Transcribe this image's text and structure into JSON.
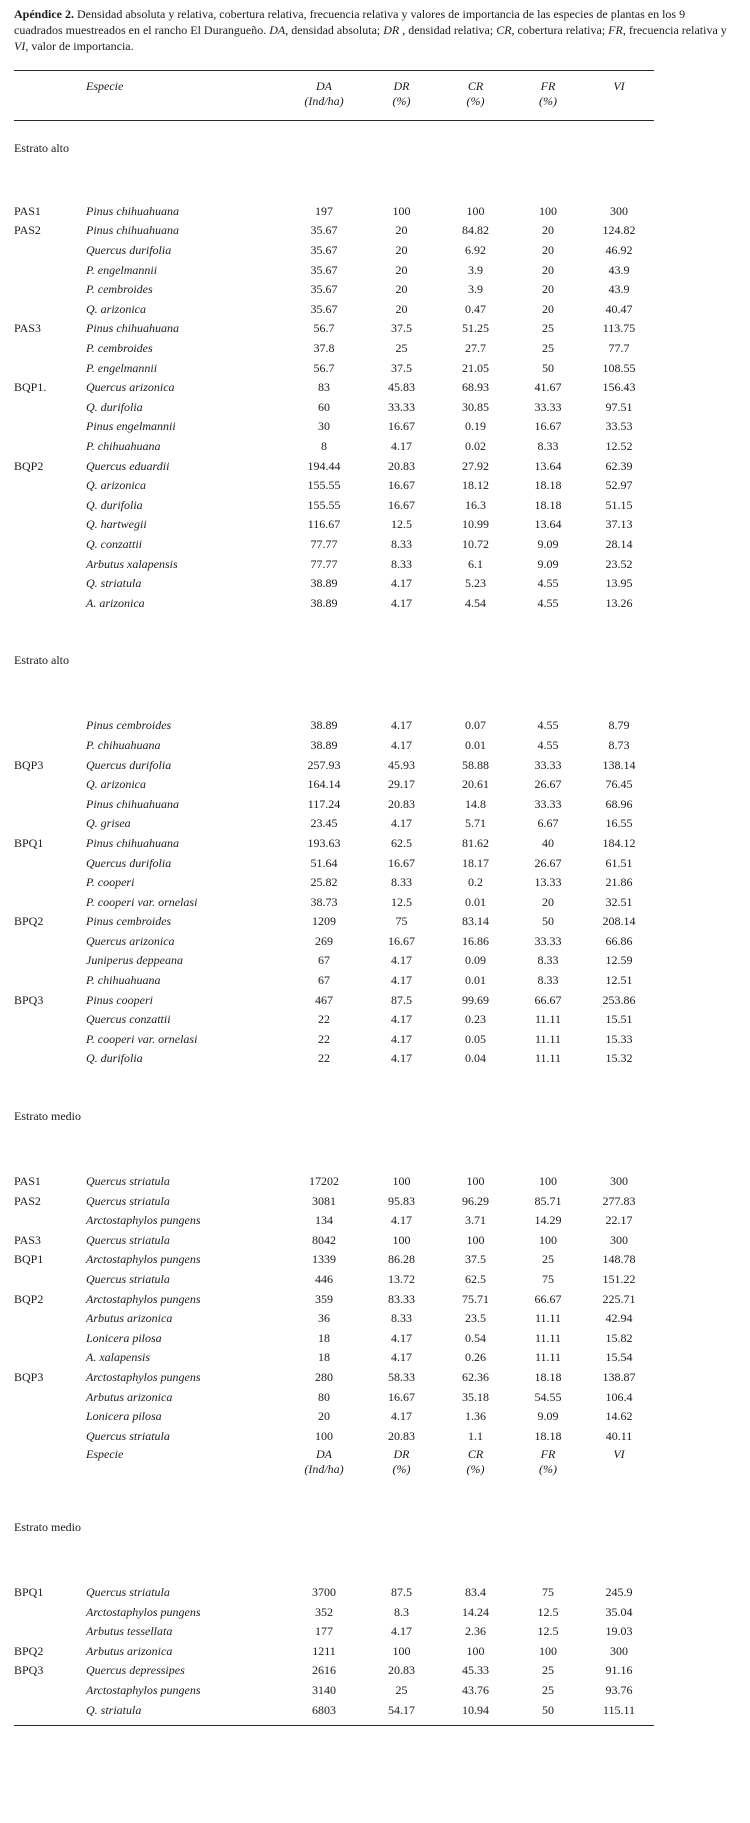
{
  "caption": {
    "parts": [
      {
        "style": "bold",
        "text": "Apéndice 2."
      },
      {
        "style": "normal",
        "text": " Densidad absoluta y relativa, cobertura relativa, frecuencia relativa y valores de importancia de las especies de plantas en los 9 cuadrados muestreados en el rancho El Durangueño. "
      },
      {
        "style": "italic",
        "text": "DA"
      },
      {
        "style": "normal",
        "text": ", densidad absoluta; "
      },
      {
        "style": "italic",
        "text": "DR"
      },
      {
        "style": "normal",
        "text": " , densidad relativa; "
      },
      {
        "style": "italic",
        "text": "CR"
      },
      {
        "style": "normal",
        "text": ", cobertura relativa; "
      },
      {
        "style": "italic",
        "text": "FR"
      },
      {
        "style": "normal",
        "text": ", frecuencia relativa y "
      },
      {
        "style": "italic",
        "text": "VI"
      },
      {
        "style": "normal",
        "text": ", valor de importancia."
      }
    ]
  },
  "table": {
    "header": {
      "especie": "Especie",
      "cols": [
        {
          "line1": "DA",
          "line2": "(Ind/ha)"
        },
        {
          "line1": "DR",
          "line2": "(%)"
        },
        {
          "line1": "CR",
          "line2": "(%)"
        },
        {
          "line1": "FR",
          "line2": "(%)"
        },
        {
          "line1": "VI",
          "line2": ""
        }
      ]
    },
    "rows": [
      {
        "section": "Estrato alto"
      },
      [
        "PAS1",
        "Pinus chihuahuana",
        "197",
        "100",
        "100",
        "100",
        "300"
      ],
      [
        "PAS2",
        "Pinus chihuahuana",
        "35.67",
        "20",
        "84.82",
        "20",
        "124.82"
      ],
      [
        "",
        "Quercus durifolia",
        "35.67",
        "20",
        "6.92",
        "20",
        "46.92"
      ],
      [
        "",
        "P. engelmannii",
        "35.67",
        "20",
        "3.9",
        "20",
        "43.9"
      ],
      [
        "",
        "P. cembroides",
        "35.67",
        "20",
        "3.9",
        "20",
        "43.9"
      ],
      [
        "",
        "Q. arizonica",
        "35.67",
        "20",
        "0.47",
        "20",
        "40.47"
      ],
      [
        "PAS3",
        "Pinus chihuahuana",
        "56.7",
        "37.5",
        "51.25",
        "25",
        "113.75"
      ],
      [
        "",
        "P. cembroides",
        "37.8",
        "25",
        "27.7",
        "25",
        "77.7"
      ],
      [
        "",
        "P. engelmannii",
        "56.7",
        "37.5",
        "21.05",
        "50",
        "108.55"
      ],
      [
        "BQP1.",
        "Quercus arizonica",
        "83",
        "45.83",
        "68.93",
        "41.67",
        "156.43"
      ],
      [
        "",
        "Q. durifolia",
        "60",
        "33.33",
        "30.85",
        "33.33",
        "97.51"
      ],
      [
        "",
        "Pinus engelmannii",
        "30",
        "16.67",
        "0.19",
        "16.67",
        "33.53"
      ],
      [
        "",
        "P. chihuahuana",
        "8",
        "4.17",
        "0.02",
        "8.33",
        "12.52"
      ],
      [
        "BQP2",
        "Quercus eduardii",
        "194.44",
        "20.83",
        "27.92",
        "13.64",
        "62.39"
      ],
      [
        "",
        "Q. arizonica",
        "155.55",
        "16.67",
        "18.12",
        "18.18",
        "52.97"
      ],
      [
        "",
        "Q. durifolia",
        "155.55",
        "16.67",
        "16.3",
        "18.18",
        "51.15"
      ],
      [
        "",
        "Q. hartwegii",
        "116.67",
        "12.5",
        "10.99",
        "13.64",
        "37.13"
      ],
      [
        "",
        "Q. conzattii",
        "77.77",
        "8.33",
        "10.72",
        "9.09",
        "28.14"
      ],
      [
        "",
        "Arbutus xalapensis",
        "77.77",
        "8.33",
        "6.1",
        "9.09",
        "23.52"
      ],
      [
        "",
        "Q. striatula",
        "38.89",
        "4.17",
        "5.23",
        "4.55",
        "13.95"
      ],
      [
        "",
        "A. arizonica",
        "38.89",
        "4.17",
        "4.54",
        "4.55",
        "13.26"
      ],
      {
        "section": "Estrato alto"
      },
      [
        "",
        "Pinus cembroides",
        "38.89",
        "4.17",
        "0.07",
        "4.55",
        "8.79"
      ],
      [
        "",
        "P. chihuahuana",
        "38.89",
        "4.17",
        "0.01",
        "4.55",
        "8.73"
      ],
      [
        "BQP3",
        "Quercus durifolia",
        "257.93",
        "45.93",
        "58.88",
        "33.33",
        "138.14"
      ],
      [
        "",
        "Q. arizonica",
        "164.14",
        "29.17",
        "20.61",
        "26.67",
        "76.45"
      ],
      [
        "",
        "Pinus chihuahuana",
        "117.24",
        "20.83",
        "14.8",
        "33.33",
        "68.96"
      ],
      [
        "",
        "Q. grisea",
        "23.45",
        "4.17",
        "5.71",
        "6.67",
        "16.55"
      ],
      [
        "BPQ1",
        "Pinus chihuahuana",
        "193.63",
        "62.5",
        "81.62",
        "40",
        "184.12"
      ],
      [
        "",
        "Quercus durifolia",
        "51.64",
        "16.67",
        "18.17",
        "26.67",
        "61.51"
      ],
      [
        "",
        "P. cooperi",
        "25.82",
        "8.33",
        "0.2",
        "13.33",
        "21.86"
      ],
      [
        "",
        "P. cooperi var. ornelasi",
        "38.73",
        "12.5",
        "0.01",
        "20",
        "32.51"
      ],
      [
        "BPQ2",
        "Pinus cembroides",
        "1209",
        "75",
        "83.14",
        "50",
        "208.14"
      ],
      [
        "",
        "Quercus arizonica",
        "269",
        "16.67",
        "16.86",
        "33.33",
        "66.86"
      ],
      [
        "",
        "Juniperus deppeana",
        "67",
        "4.17",
        "0.09",
        "8.33",
        "12.59"
      ],
      [
        "",
        "P. chihuahuana",
        "67",
        "4.17",
        "0.01",
        "8.33",
        "12.51"
      ],
      [
        "BPQ3",
        "Pinus cooperi",
        "467",
        "87.5",
        "99.69",
        "66.67",
        "253.86"
      ],
      [
        "",
        "Quercus conzattii",
        "22",
        "4.17",
        "0.23",
        "11.11",
        "15.51"
      ],
      [
        "",
        "P. cooperi var. ornelasi",
        "22",
        "4.17",
        "0.05",
        "11.11",
        "15.33"
      ],
      [
        "",
        "Q. durifolia",
        "22",
        "4.17",
        "0.04",
        "11.11",
        "15.32"
      ],
      {
        "section": "Estrato medio"
      },
      [
        "PAS1",
        "Quercus striatula",
        "17202",
        "100",
        "100",
        "100",
        "300"
      ],
      [
        "PAS2",
        "Quercus striatula",
        "3081",
        "95.83",
        "96.29",
        "85.71",
        "277.83"
      ],
      [
        "",
        "Arctostaphylos pungens",
        "134",
        "4.17",
        "3.71",
        "14.29",
        "22.17"
      ],
      [
        "PAS3",
        "Quercus striatula",
        "8042",
        "100",
        "100",
        "100",
        "300"
      ],
      [
        "BQP1",
        "Arctostaphylos pungens",
        "1339",
        "86.28",
        "37.5",
        "25",
        "148.78"
      ],
      [
        "",
        "Quercus striatula",
        "446",
        "13.72",
        "62.5",
        "75",
        "151.22"
      ],
      [
        "BQP2",
        "Arctostaphylos pungens",
        "359",
        "83.33",
        "75.71",
        "66.67",
        "225.71"
      ],
      [
        "",
        "Arbutus arizonica",
        "36",
        "8.33",
        "23.5",
        "11.11",
        "42.94"
      ],
      [
        "",
        "Lonicera pilosa",
        "18",
        "4.17",
        "0.54",
        "11.11",
        "15.82"
      ],
      [
        "",
        "A. xalapensis",
        "18",
        "4.17",
        "0.26",
        "11.11",
        "15.54"
      ],
      [
        "BQP3",
        "Arctostaphylos pungens",
        "280",
        "58.33",
        "62.36",
        "18.18",
        "138.87"
      ],
      [
        "",
        "Arbutus arizonica",
        "80",
        "16.67",
        "35.18",
        "54.55",
        "106.4"
      ],
      [
        "",
        "Lonicera pilosa",
        "20",
        "4.17",
        "1.36",
        "9.09",
        "14.62"
      ],
      [
        "",
        "Quercus striatula",
        "100",
        "20.83",
        "1.1",
        "18.18",
        "40.11"
      ],
      {
        "repeat_header": true
      },
      {
        "section": "Estrato medio"
      },
      [
        "BPQ1",
        "Quercus striatula",
        "3700",
        "87.5",
        "83.4",
        "75",
        "245.9"
      ],
      [
        "",
        "Arctostaphylos pungens",
        "352",
        "8.3",
        "14.24",
        "12.5",
        "35.04"
      ],
      [
        "",
        "Arbutus tessellata",
        "177",
        "4.17",
        "2.36",
        "12.5",
        "19.03"
      ],
      [
        "BPQ2",
        "Arbutus arizonica",
        "1211",
        "100",
        "100",
        "100",
        "300"
      ],
      [
        "BPQ3",
        "Quercus depressipes",
        "2616",
        "20.83",
        "45.33",
        "25",
        "91.16"
      ],
      [
        "",
        "Arctostaphylos pungens",
        "3140",
        "25",
        "43.76",
        "25",
        "93.76"
      ],
      [
        "",
        "Q. striatula",
        "6803",
        "54.17",
        "10.94",
        "50",
        "115.11"
      ]
    ]
  }
}
